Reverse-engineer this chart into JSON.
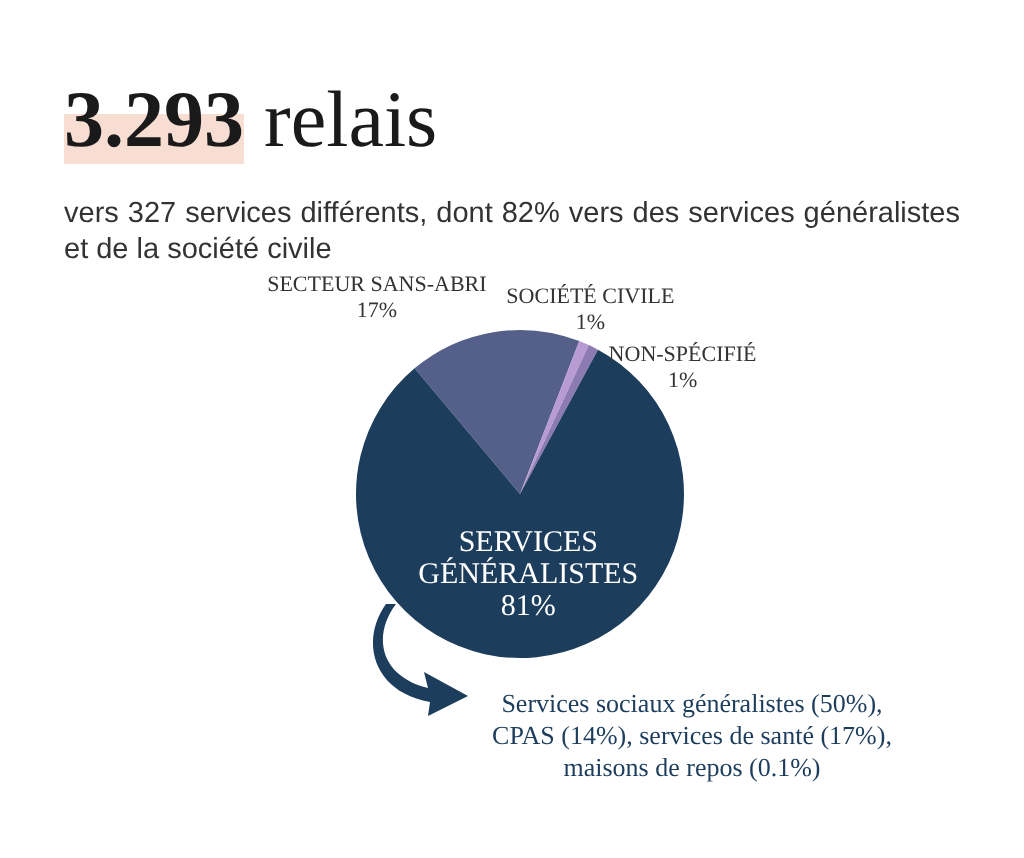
{
  "chart_data": {
    "type": "pie",
    "title": "3.293 relais",
    "subtitle": "vers 327 services différents, dont 82% vers des services généralistes et de la société civile",
    "categories": [
      "SECTEUR SANS-ABRI",
      "SOCIÉTÉ CIVILE",
      "NON-SPÉCIFIÉ",
      "SERVICES GÉNÉRALISTES"
    ],
    "values": [
      17,
      1,
      1,
      81
    ],
    "value_labels": [
      "17%",
      "1%",
      "1%",
      "81%"
    ],
    "colors": [
      "#55608a",
      "#b89bd2",
      "#8c7bb2",
      "#1d3d5c"
    ],
    "annotations": [
      "Services sociaux généralistes (50%), CPAS (14%), services de santé (17%), maisons de repos (0.1%)"
    ],
    "legend": false
  }
}
